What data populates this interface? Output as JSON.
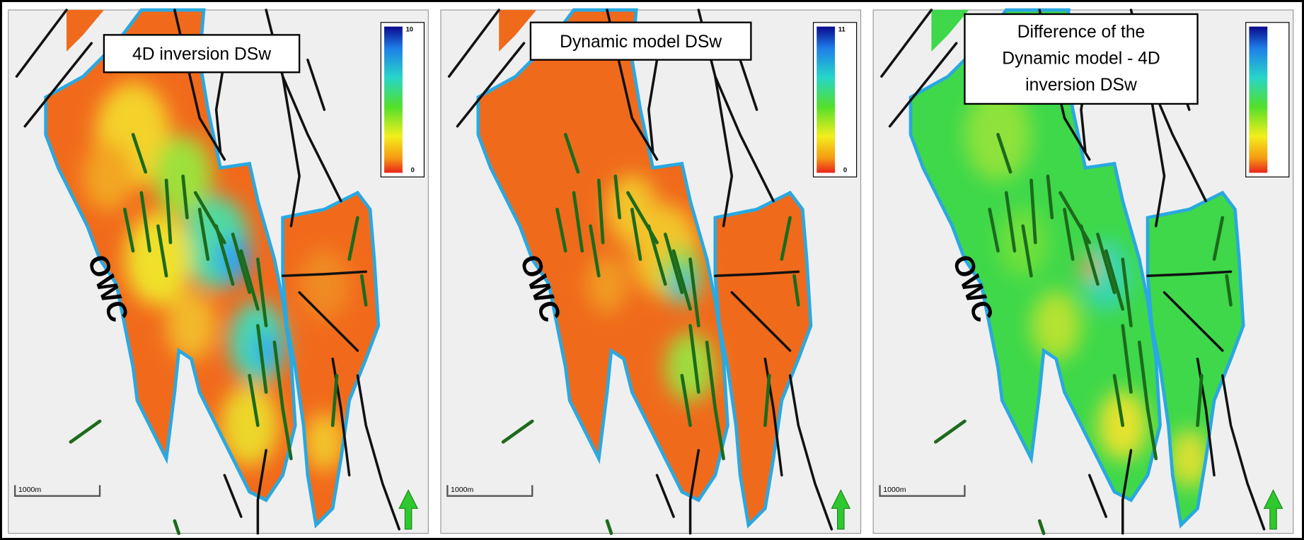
{
  "panels": [
    {
      "title": [
        "4D inversion DSw"
      ],
      "colorbar": {
        "max": "10",
        "min": "0"
      },
      "owc_label": "OWC",
      "scale_label": "1000m"
    },
    {
      "title": [
        "Dynamic model DSw"
      ],
      "colorbar": {
        "max": "11",
        "min": "0"
      },
      "owc_label": "OWC",
      "scale_label": "1000m"
    },
    {
      "title": [
        "Difference of the",
        "Dynamic model - 4D",
        "inversion DSw"
      ],
      "colorbar": {},
      "owc_label": "OWC",
      "scale_label": "1000m"
    }
  ]
}
